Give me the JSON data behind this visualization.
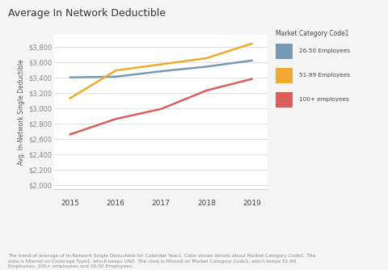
{
  "title": "Average In Network Deductible",
  "ylabel": "Avg. In-Network Single Deductible",
  "years": [
    2015,
    2016,
    2017,
    2018,
    2019
  ],
  "series": [
    {
      "label": "26-50 Employees",
      "color": "#7899b4",
      "values": [
        3400,
        3410,
        3480,
        3540,
        3620
      ]
    },
    {
      "label": "51-99 Employees",
      "color": "#f0a830",
      "values": [
        3130,
        3490,
        3570,
        3650,
        3840
      ]
    },
    {
      "label": "100+ employees",
      "color": "#d9605a",
      "values": [
        2660,
        2860,
        2990,
        3230,
        3380
      ]
    }
  ],
  "legend_title": "Market Category Code1",
  "ylim": [
    1950,
    3950
  ],
  "yticks": [
    2000,
    2200,
    2400,
    2600,
    2800,
    3000,
    3200,
    3400,
    3600,
    3800
  ],
  "background_color": "#f5f5f5",
  "plot_bg_color": "#ffffff",
  "footer_text": "The trend of average of In-Network Single Deductible for Calendar Year1. Color shows details about Market Category Code1. The\ndata is filtered on Coverage Type1, which keeps UND. The view is filtered on Market Category Code1, which keeps 51-99\nEmployees, 100+ employees and 26-50 Employees.",
  "line_width": 1.8,
  "xband_color": "#aecfdf"
}
